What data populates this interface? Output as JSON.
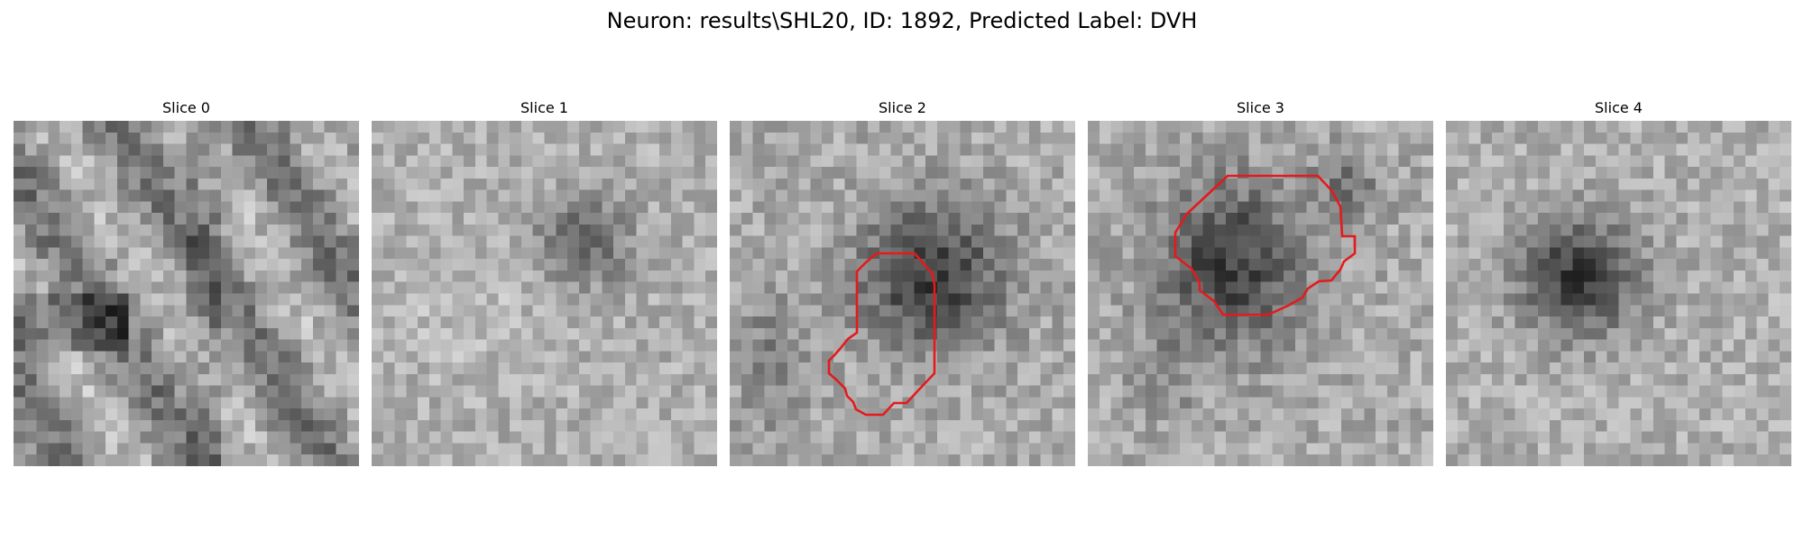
{
  "figure": {
    "title": "Neuron: results\\SHL20, ID: 1892, Predicted Label: DVH",
    "contour_color": "#e41a1c"
  },
  "panels": [
    {
      "title": "Slice 0"
    },
    {
      "title": "Slice 1"
    },
    {
      "title": "Slice 2"
    },
    {
      "title": "Slice 3"
    },
    {
      "title": "Slice 4"
    }
  ]
}
